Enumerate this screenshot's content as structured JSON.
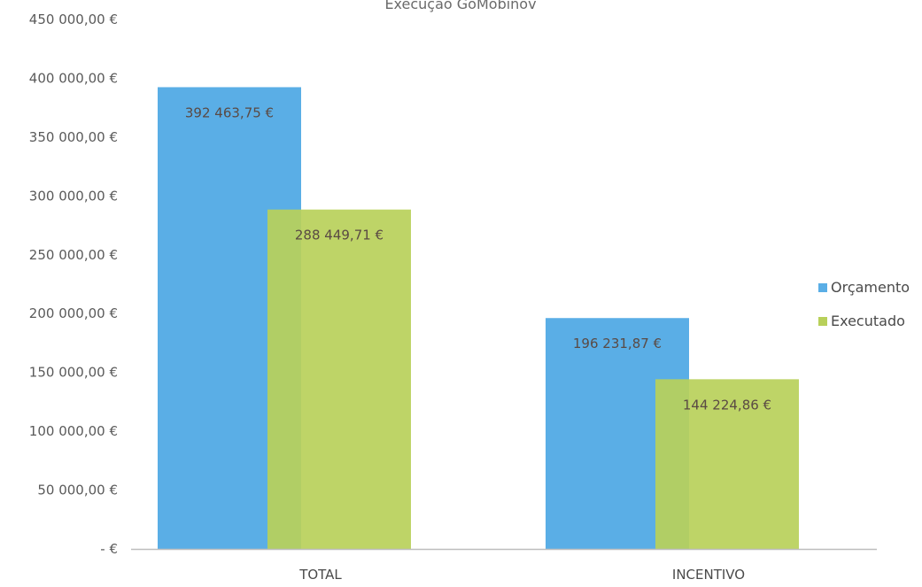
{
  "chart_data": {
    "type": "bar",
    "title": "Execução GoMobinov",
    "categories": [
      "TOTAL",
      "INCENTIVO"
    ],
    "series": [
      {
        "name": "Orçamento",
        "values": [
          392463.75,
          196231.87
        ],
        "labels": [
          "392 463,75 €",
          "196 231,87 €"
        ],
        "color": "#5aaee6"
      },
      {
        "name": "Executado",
        "values": [
          288449.71,
          144224.86
        ],
        "labels": [
          "288 449,71 €",
          "144 224,86 €"
        ],
        "color": "#b8d05a"
      }
    ],
    "ylim": [
      0,
      450000
    ],
    "yticks": [
      0,
      50000,
      100000,
      150000,
      200000,
      250000,
      300000,
      350000,
      400000,
      450000
    ],
    "ytick_labels": [
      "-   €",
      "50 000,00 €",
      "100 000,00 €",
      "150 000,00 €",
      "200 000,00 €",
      "250 000,00 €",
      "300 000,00 €",
      "350 000,00 €",
      "400 000,00 €",
      "450 000,00 €"
    ],
    "xlabel": "",
    "ylabel": "",
    "grid": false,
    "legend_position": "right"
  }
}
